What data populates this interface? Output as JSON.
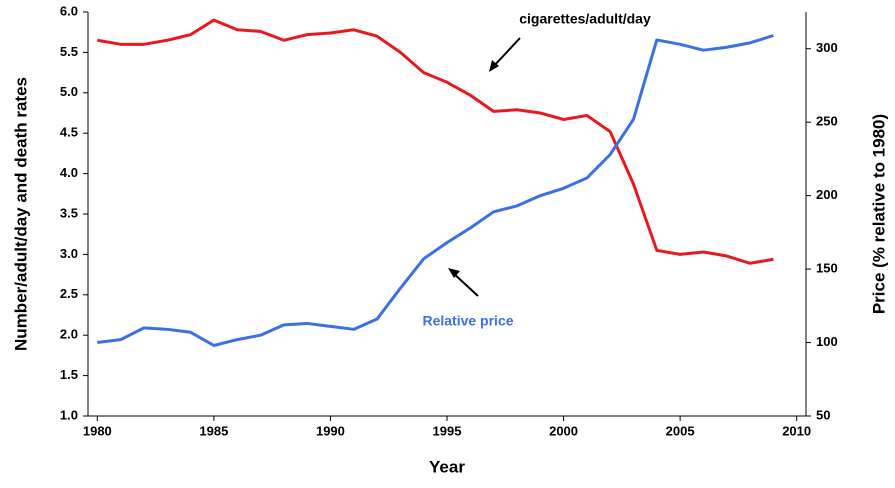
{
  "chart_data": {
    "type": "line",
    "x_label": "Year",
    "y_label": "Number/adult/day and death rates",
    "y2_label": "Price (% relative to 1980)",
    "annotations": [
      "cigarettes/adult/day",
      "Relative price"
    ],
    "x": [
      1980,
      1981,
      1982,
      1983,
      1984,
      1985,
      1986,
      1987,
      1988,
      1989,
      1990,
      1991,
      1992,
      1993,
      1994,
      1995,
      1996,
      1997,
      1998,
      1999,
      2000,
      2001,
      2002,
      2003,
      2004,
      2005,
      2006,
      2007,
      2008,
      2009
    ],
    "series": [
      {
        "name": "cigarettes/adult/day",
        "color": "#e8191e",
        "values": [
          5.65,
          5.6,
          5.6,
          5.65,
          5.72,
          5.9,
          5.78,
          5.76,
          5.65,
          5.72,
          5.74,
          5.78,
          5.7,
          5.5,
          5.25,
          5.13,
          4.97,
          4.77,
          4.79,
          4.75,
          4.67,
          4.72,
          4.52,
          3.87,
          3.05,
          3.0,
          3.03,
          2.98,
          2.89,
          2.94
        ]
      },
      {
        "name": "Relative price",
        "color": "#3b6fe8",
        "axis": "y2",
        "values": [
          100,
          102,
          110,
          109,
          107,
          98,
          102,
          105,
          112,
          113,
          111,
          109,
          116,
          137,
          157,
          168,
          178,
          189,
          193,
          200,
          205,
          212,
          228,
          252,
          306,
          303,
          299,
          301,
          304,
          309
        ]
      }
    ],
    "xlim": [
      1979.6,
      2010.4
    ],
    "xticks": [
      1980,
      1985,
      1990,
      1995,
      2000,
      2005,
      2010
    ],
    "ylim": [
      1.0,
      6.0
    ],
    "yticks": [
      {
        "value": 1.0,
        "label": "1.0"
      },
      1.5,
      {
        "value": 2.0,
        "label": "2.0"
      },
      2.5,
      {
        "value": 3.0,
        "label": "3.0"
      },
      3.5,
      {
        "value": 4.0,
        "label": "4.0"
      },
      4.5,
      {
        "value": 5.0,
        "label": "5.0"
      },
      5.5,
      {
        "value": 6.0,
        "label": "6.0"
      }
    ],
    "y2lim": [
      50,
      325
    ],
    "y2ticks": [
      50,
      100,
      150,
      200,
      250,
      300
    ]
  }
}
